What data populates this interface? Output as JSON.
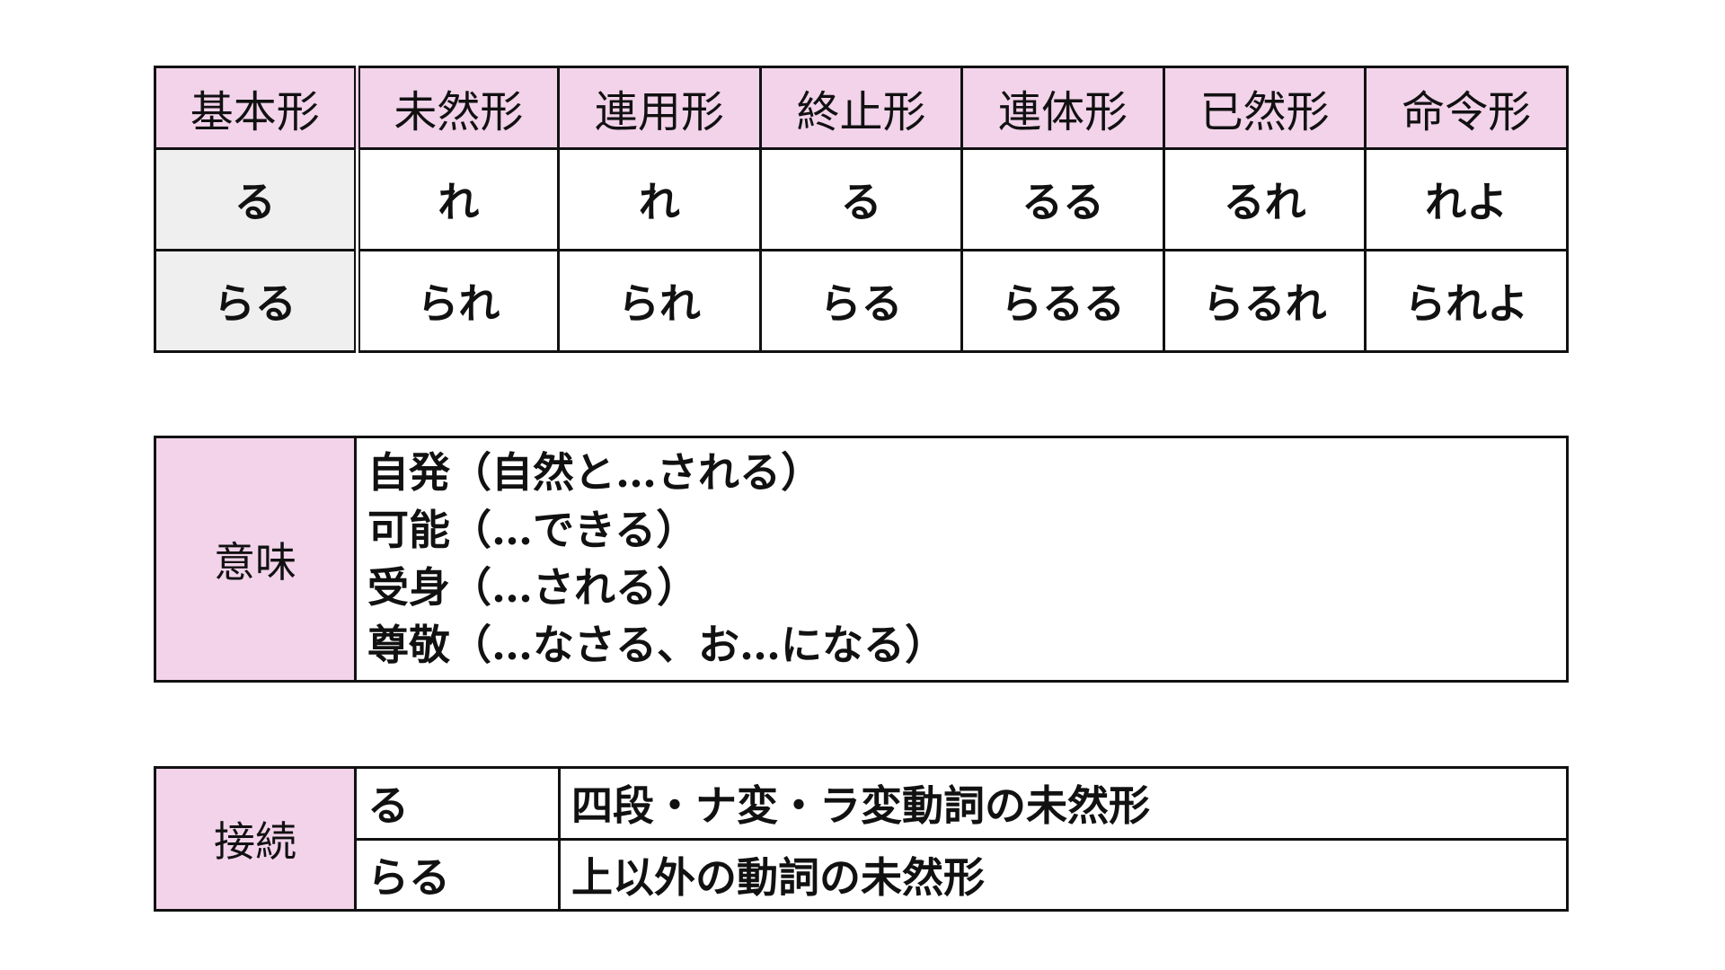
{
  "conjugation": {
    "headers": [
      "基本形",
      "未然形",
      "連用形",
      "終止形",
      "連体形",
      "已然形",
      "命令形"
    ],
    "rows": [
      [
        "る",
        "れ",
        "れ",
        "る",
        "るる",
        "るれ",
        "れよ"
      ],
      [
        "らる",
        "られ",
        "られ",
        "らる",
        "らるる",
        "らるれ",
        "られよ"
      ]
    ]
  },
  "meaning": {
    "label": "意味",
    "lines": [
      "自発（自然と…される）",
      "可能（…できる）",
      "受身（…される）",
      "尊敬（…なさる、お…になる）"
    ]
  },
  "connection": {
    "label": "接続",
    "rows": [
      {
        "suffix": "る",
        "desc": "四段・ナ変・ラ変動詞の未然形"
      },
      {
        "suffix": "らる",
        "desc": "上以外の動詞の未然形"
      }
    ]
  },
  "colors": {
    "header_bg": "#f2d3ea",
    "base_bg": "#efefef"
  }
}
